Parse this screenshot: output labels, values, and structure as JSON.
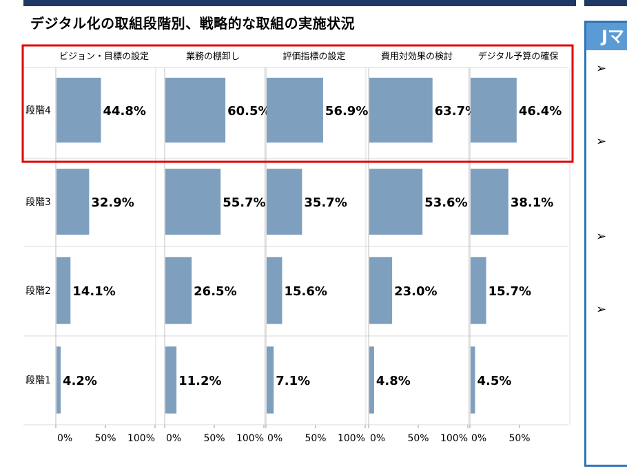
{
  "title": "デジタル化の取組段階別、戦略的な取組の実施状況",
  "side_panel": {
    "header": "Jマ",
    "bullets": [
      "➢",
      "➢",
      "➢",
      "➢"
    ]
  },
  "colors": {
    "bar": "#7f9fbf",
    "highlight": "#e00000",
    "grid": "#d9d9d9",
    "panel_border": "#2e75b6",
    "panel_header": "#5b9bd5"
  },
  "chart_data": {
    "type": "bar",
    "orientation": "horizontal",
    "panels": [
      "ビジョン・目標の設定",
      "業務の棚卸し",
      "評価指標の設定",
      "費用対効果の検討",
      "デジタル予算の確保"
    ],
    "categories": [
      "段階4",
      "段階3",
      "段階2",
      "段階1"
    ],
    "series": [
      {
        "name": "ビジョン・目標の設定",
        "values": [
          44.8,
          32.9,
          14.1,
          4.2
        ],
        "labels": [
          "44.8%",
          "32.9%",
          "14.1%",
          "4.2%"
        ]
      },
      {
        "name": "業務の棚卸し",
        "values": [
          60.5,
          55.7,
          26.5,
          11.2
        ],
        "labels": [
          "60.5%",
          "55.7%",
          "26.5%",
          "11.2%"
        ]
      },
      {
        "name": "評価指標の設定",
        "values": [
          56.9,
          35.7,
          15.6,
          7.1
        ],
        "labels": [
          "56.9%",
          "35.7%",
          "15.6%",
          "7.1%"
        ]
      },
      {
        "name": "費用対効果の検討",
        "values": [
          63.7,
          53.6,
          23.0,
          4.8
        ],
        "labels": [
          "63.7%",
          "53.6%",
          "23.0%",
          "4.8%"
        ]
      },
      {
        "name": "デジタル予算の確保",
        "values": [
          46.4,
          38.1,
          15.7,
          4.5
        ],
        "labels": [
          "46.4%",
          "38.1%",
          "15.7%",
          "4.5%"
        ]
      }
    ],
    "x_ticks": [
      [
        "0%",
        "50%",
        "100%"
      ],
      [
        "0%",
        "50%",
        "100%"
      ],
      [
        "0%",
        "50%",
        "100%"
      ],
      [
        "0%",
        "50%",
        "100%"
      ],
      [
        "0%",
        "50%"
      ]
    ],
    "xlim": [
      0,
      100
    ],
    "highlighted_row": "段階4"
  }
}
